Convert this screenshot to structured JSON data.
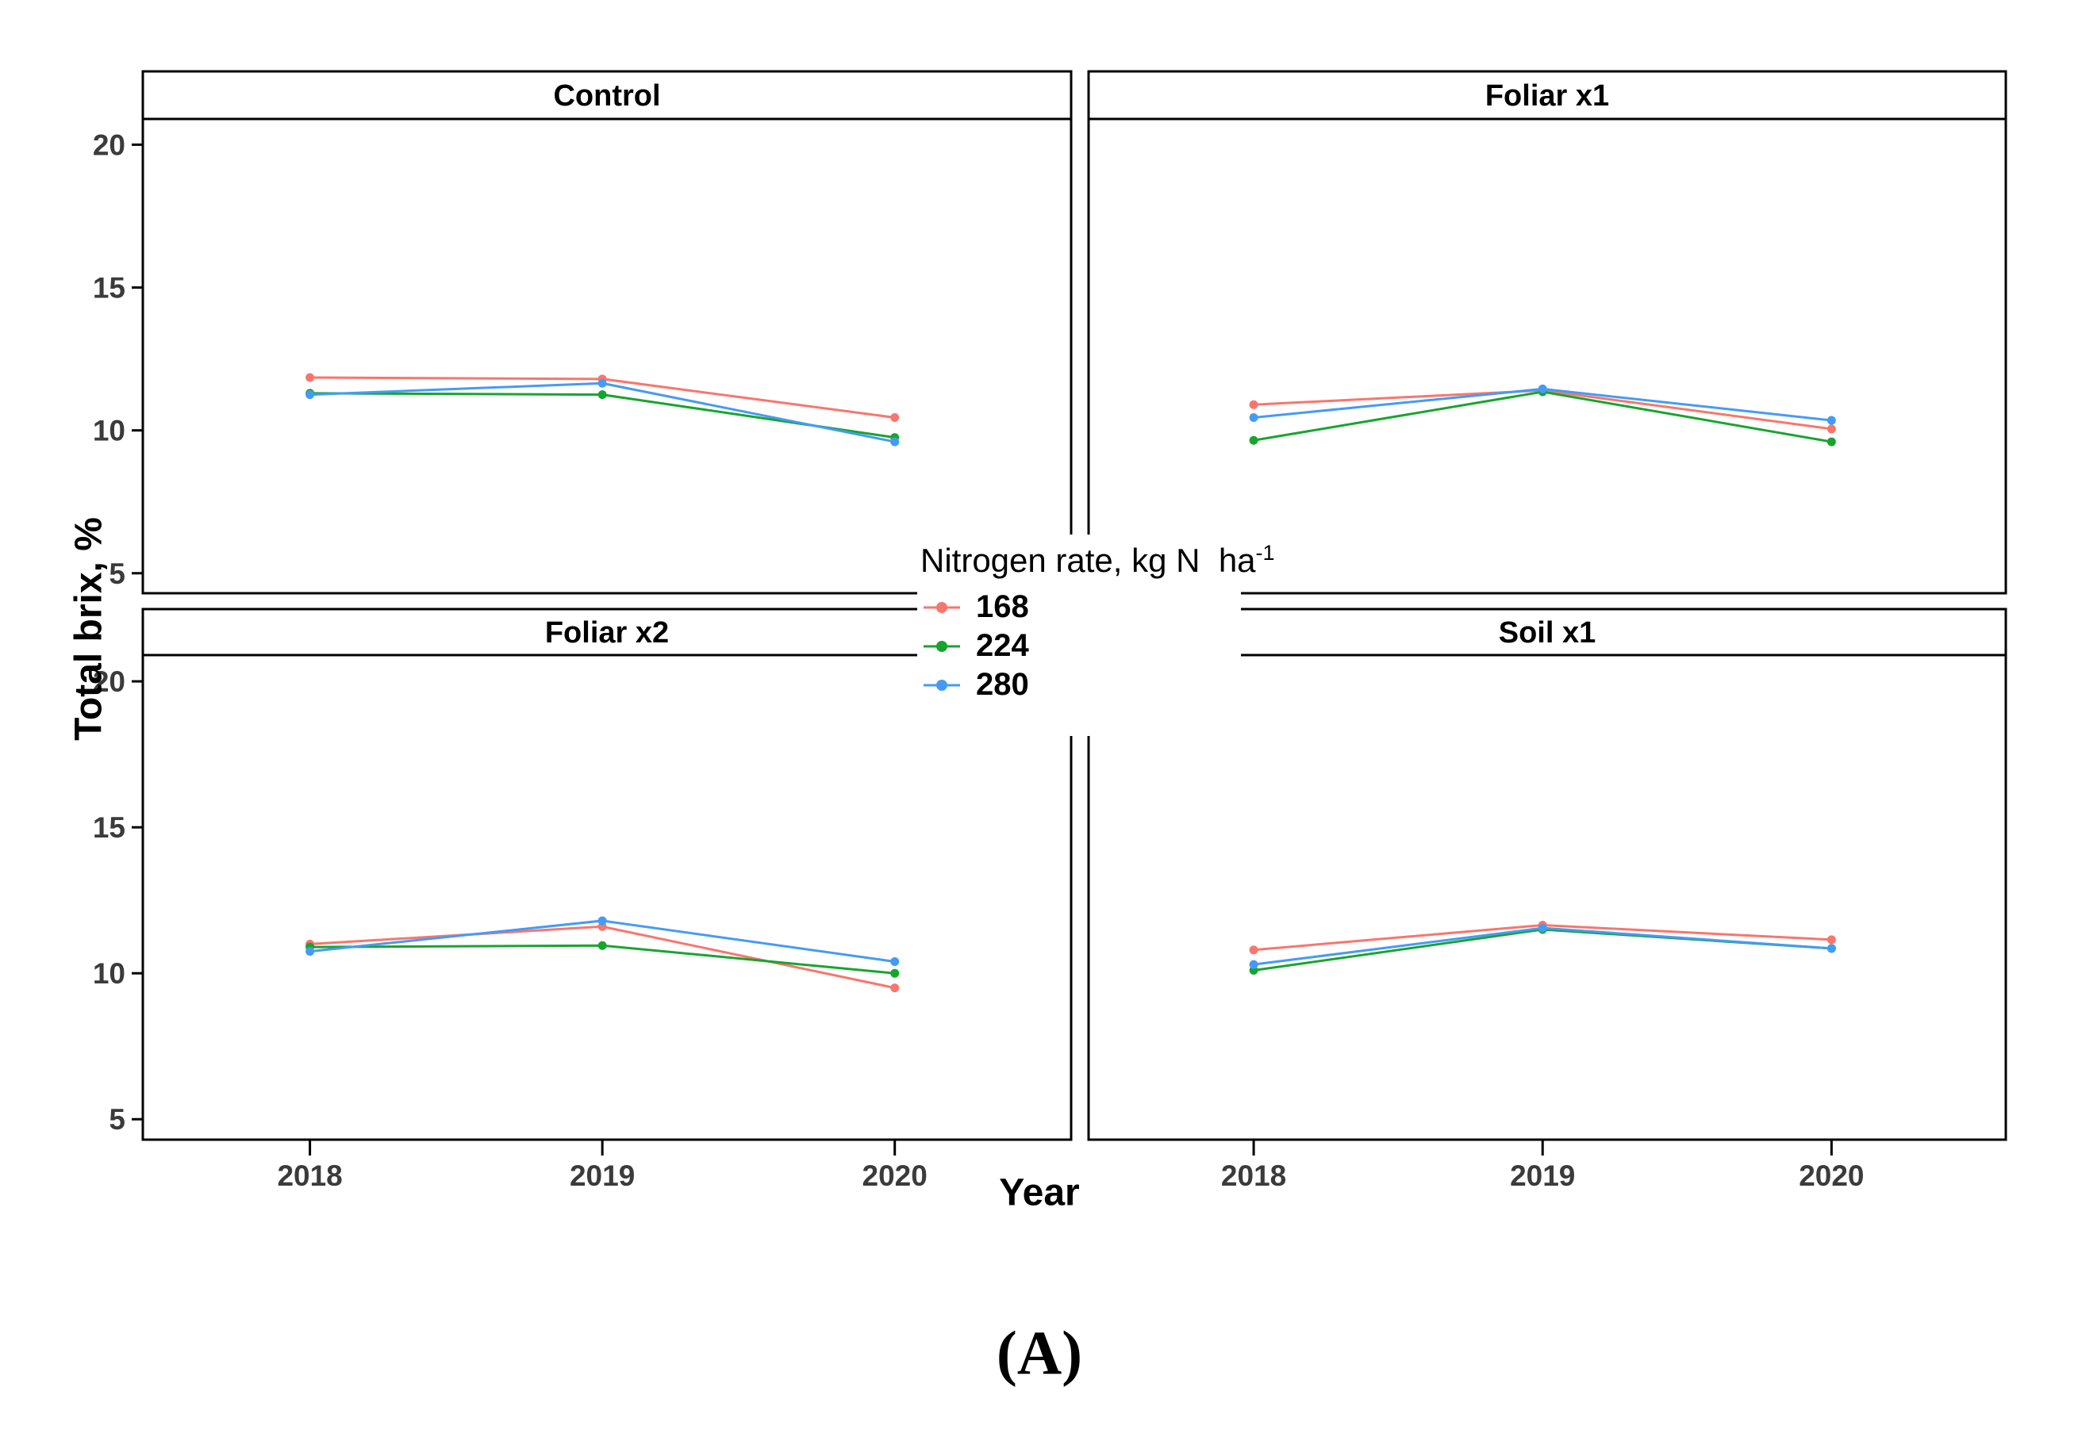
{
  "caption": "(A)",
  "axes": {
    "y_title": "Total brix, %",
    "x_title": "Year"
  },
  "legend": {
    "title_main": "Nitrogen rate, kg N  ha",
    "title_sup": "-1",
    "items": [
      {
        "label": "168",
        "color": "#F8766D"
      },
      {
        "label": "224",
        "color": "#17A52E"
      },
      {
        "label": "280",
        "color": "#449BF5"
      }
    ]
  },
  "chart_data": {
    "type": "line",
    "title": "",
    "xlabel": "Year",
    "ylabel": "Total brix, %",
    "x": [
      "2018",
      "2019",
      "2020"
    ],
    "yticks": [
      20,
      15,
      10,
      5
    ],
    "ylim": [
      4.3,
      20.9
    ],
    "grid": false,
    "legend_position": "center",
    "legend_title": "Nitrogen rate, kg N ha-1",
    "series_colors": {
      "168": "#F8766D",
      "224": "#17A52E",
      "280": "#449BF5"
    },
    "facets": [
      {
        "title": "Control",
        "series": [
          {
            "name": "168",
            "values": [
              11.85,
              11.8,
              10.45
            ]
          },
          {
            "name": "224",
            "values": [
              11.3,
              11.25,
              9.75
            ]
          },
          {
            "name": "280",
            "values": [
              11.25,
              11.65,
              9.6
            ]
          }
        ]
      },
      {
        "title": "Foliar x1",
        "series": [
          {
            "name": "168",
            "values": [
              10.9,
              11.4,
              10.05
            ]
          },
          {
            "name": "224",
            "values": [
              9.65,
              11.35,
              9.6
            ]
          },
          {
            "name": "280",
            "values": [
              10.45,
              11.45,
              10.35
            ]
          }
        ]
      },
      {
        "title": "Foliar x2",
        "series": [
          {
            "name": "168",
            "values": [
              11.0,
              11.6,
              9.5
            ]
          },
          {
            "name": "224",
            "values": [
              10.9,
              10.95,
              10.0
            ]
          },
          {
            "name": "280",
            "values": [
              10.75,
              11.8,
              10.4
            ]
          }
        ]
      },
      {
        "title": "Soil x1",
        "series": [
          {
            "name": "168",
            "values": [
              10.8,
              11.65,
              11.15
            ]
          },
          {
            "name": "224",
            "values": [
              10.1,
              11.5,
              10.85
            ]
          },
          {
            "name": "280",
            "values": [
              10.3,
              11.55,
              10.85
            ]
          }
        ]
      }
    ]
  },
  "style_colors": {
    "panel_border": "#000000",
    "tick_label": "#3b3b3b",
    "strip_bg": "#ffffff"
  }
}
